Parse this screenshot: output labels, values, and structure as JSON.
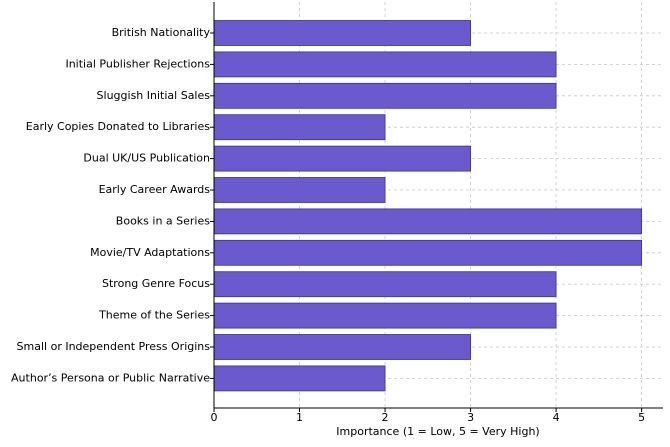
{
  "chart_data": {
    "type": "barh",
    "xlabel": "Importance (1 = Low, 5 = Very High)",
    "categories": [
      "British Nationality",
      "Initial Publisher Rejections",
      "Sluggish Initial Sales",
      "Early Copies Donated to Libraries",
      "Dual UK/US Publication",
      "Early Career Awards",
      "Books in a Series",
      "Movie/TV Adaptations",
      "Strong Genre Focus",
      "Theme of the Series",
      "Small or Independent Press Origins",
      "Author’s Persona or Public Narrative"
    ],
    "values": [
      3,
      4,
      4,
      2,
      3,
      2,
      5,
      5,
      4,
      4,
      3,
      2
    ],
    "color": "#6a5acd",
    "xlim": [
      0,
      5.25
    ],
    "xticks": [
      0,
      1,
      2,
      3,
      4,
      5
    ],
    "grid": true
  }
}
